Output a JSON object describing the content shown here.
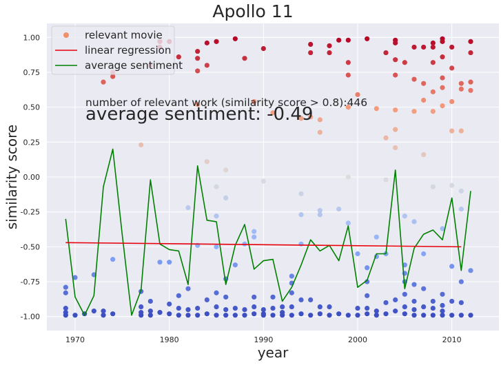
{
  "chart_data": {
    "type": "scatter",
    "title": "Apollo 11",
    "xlabel": "year",
    "ylabel": "similarity score",
    "xlim": [
      1967,
      2015
    ],
    "ylim": [
      -1.1,
      1.1
    ],
    "xticks": [
      "1970",
      "1980",
      "1990",
      "2000",
      "2010"
    ],
    "yticks": [
      "-1.00",
      "-0.75",
      "-0.50",
      "-0.25",
      "0.00",
      "0.25",
      "0.50",
      "0.75",
      "1.00"
    ],
    "grid": true,
    "legend_position": "top-left",
    "legend": [
      "relevant movie",
      "linear regression",
      "average sentiment"
    ],
    "annotations": {
      "count_text": "number of relevant work (similarity score > 0.8):446",
      "sentiment_text": "average sentiment: -0.49"
    },
    "colors": {
      "background": "#eaeaf2",
      "regression": "#e8000b",
      "sentiment": "#008000",
      "legend_marker": "#f0906a"
    },
    "regression": {
      "x": [
        1969,
        2011
      ],
      "y": [
        -0.47,
        -0.5
      ]
    },
    "average_sentiment": {
      "x": [
        1969,
        1970,
        1971,
        1972,
        1973,
        1974,
        1975,
        1976,
        1977,
        1978,
        1979,
        1980,
        1981,
        1982,
        1983,
        1984,
        1985,
        1986,
        1987,
        1988,
        1989,
        1990,
        1991,
        1992,
        1993,
        1994,
        1995,
        1996,
        1997,
        1998,
        1999,
        2000,
        2001,
        2002,
        2003,
        2004,
        2005,
        2006,
        2007,
        2008,
        2009,
        2010,
        2011,
        2012
      ],
      "y": [
        -0.3,
        -0.86,
        -0.99,
        -0.85,
        -0.07,
        0.2,
        -0.41,
        -0.99,
        -0.81,
        -0.02,
        -0.48,
        -0.52,
        -0.53,
        -0.77,
        0.08,
        -0.31,
        -0.32,
        -0.77,
        -0.49,
        -0.34,
        -0.66,
        -0.6,
        -0.59,
        -0.89,
        -0.79,
        -0.63,
        -0.45,
        -0.53,
        -0.49,
        -0.6,
        -0.35,
        -0.79,
        -0.74,
        -0.55,
        -0.55,
        0.05,
        -0.8,
        -0.51,
        -0.41,
        -0.38,
        -0.45,
        -0.15,
        -0.67,
        -0.1
      ]
    },
    "points": {
      "x": [
        1969,
        1969,
        1969,
        1969,
        1969,
        1970,
        1970,
        1971,
        1972,
        1972,
        1973,
        1973,
        1973,
        1974,
        1974,
        1974,
        1974,
        1977,
        1977,
        1977,
        1977,
        1977,
        1978,
        1978,
        1978,
        1978,
        1979,
        1979,
        1979,
        1979,
        1980,
        1980,
        1980,
        1980,
        1981,
        1981,
        1981,
        1981,
        1982,
        1982,
        1982,
        1982,
        1983,
        1983,
        1983,
        1983,
        1983,
        1983,
        1983,
        1984,
        1984,
        1984,
        1984,
        1984,
        1985,
        1985,
        1985,
        1985,
        1985,
        1985,
        1985,
        1986,
        1986,
        1986,
        1986,
        1986,
        1986,
        1987,
        1987,
        1987,
        1987,
        1988,
        1988,
        1988,
        1988,
        1989,
        1989,
        1989,
        1989,
        1989,
        1989,
        1990,
        1990,
        1990,
        1990,
        1990,
        1991,
        1991,
        1991,
        1991,
        1992,
        1992,
        1992,
        1993,
        1993,
        1993,
        1993,
        1993,
        1994,
        1994,
        1994,
        1994,
        1994,
        1994,
        1995,
        1995,
        1995,
        1995,
        1995,
        1996,
        1996,
        1996,
        1996,
        1996,
        1996,
        1997,
        1997,
        1997,
        1997,
        1998,
        1998,
        1998,
        1999,
        1999,
        1999,
        1999,
        1999,
        1999,
        1999,
        2000,
        2000,
        2000,
        2000,
        2001,
        2001,
        2001,
        2001,
        2001,
        2001,
        2002,
        2002,
        2002,
        2002,
        2002,
        2003,
        2003,
        2003,
        2003,
        2003,
        2003,
        2004,
        2004,
        2004,
        2004,
        2004,
        2004,
        2004,
        2004,
        2004,
        2005,
        2005,
        2005,
        2005,
        2005,
        2005,
        2005,
        2005,
        2006,
        2006,
        2006,
        2006,
        2006,
        2006,
        2006,
        2006,
        2007,
        2007,
        2007,
        2007,
        2007,
        2007,
        2007,
        2007,
        2008,
        2008,
        2008,
        2008,
        2008,
        2008,
        2008,
        2008,
        2008,
        2009,
        2009,
        2009,
        2009,
        2009,
        2009,
        2009,
        2009,
        2009,
        2009,
        2009,
        2010,
        2010,
        2010,
        2010,
        2010,
        2010,
        2010,
        2010,
        2011,
        2011,
        2011,
        2011,
        2011,
        2011,
        2011,
        2011,
        2012,
        2012,
        2012,
        2012,
        2012,
        2012
      ],
      "y": [
        -0.79,
        -0.83,
        -0.94,
        -0.97,
        -0.99,
        -0.72,
        -0.99,
        -0.98,
        -0.7,
        -0.96,
        0.68,
        -0.96,
        -0.99,
        0.72,
        0.75,
        -0.59,
        -0.98,
        0.23,
        -0.82,
        -0.93,
        -0.97,
        -0.99,
        0.8,
        -0.89,
        -0.96,
        -0.99,
        0.97,
        0.93,
        -0.61,
        -0.97,
        0.97,
        -0.61,
        -0.91,
        -0.98,
        0.86,
        -0.85,
        -0.94,
        -0.99,
        -0.22,
        -0.8,
        -0.95,
        -0.99,
        0.9,
        0.85,
        0.76,
        0.52,
        -0.49,
        -0.94,
        -0.99,
        0.96,
        0.8,
        0.11,
        -0.88,
        -0.98,
        0.97,
        -0.07,
        -0.28,
        -0.5,
        -0.83,
        -0.93,
        -0.99,
        0.05,
        -0.15,
        -0.73,
        -0.86,
        -0.95,
        -0.99,
        0.99,
        -0.63,
        -0.94,
        -0.99,
        0.85,
        -0.48,
        -0.95,
        -0.99,
        0.54,
        -0.39,
        -0.43,
        -0.86,
        -0.93,
        -0.98,
        0.92,
        -0.03,
        -0.95,
        -0.98,
        -0.99,
        0.46,
        -0.86,
        -0.94,
        -0.99,
        -0.93,
        -0.97,
        -0.99,
        -0.71,
        -0.76,
        -0.83,
        -0.93,
        -0.99,
        0.42,
        -0.12,
        -0.27,
        -0.48,
        -0.88,
        -0.98,
        0.95,
        0.89,
        0.43,
        -0.88,
        -0.99,
        0.41,
        0.32,
        -0.24,
        -0.27,
        -0.93,
        -0.98,
        0.94,
        0.89,
        -0.93,
        -0.99,
        0.98,
        -0.23,
        -0.98,
        0.98,
        0.82,
        0.73,
        0.5,
        0.0,
        -0.33,
        -0.99,
        0.59,
        -0.55,
        -0.94,
        -0.99,
        0.99,
        -0.65,
        -0.75,
        -0.85,
        -0.94,
        -0.98,
        0.49,
        -0.43,
        -0.57,
        -0.96,
        -0.99,
        0.89,
        0.28,
        -0.02,
        -0.55,
        -0.9,
        -0.98,
        0.98,
        0.96,
        0.84,
        0.73,
        0.48,
        0.34,
        0.21,
        -0.88,
        -0.96,
        0.82,
        -0.28,
        -0.63,
        -0.69,
        -0.75,
        -0.84,
        -0.93,
        -0.98,
        0.93,
        0.7,
        0.47,
        -0.32,
        -0.77,
        -0.89,
        -0.95,
        -0.99,
        0.93,
        0.67,
        0.55,
        0.16,
        -0.55,
        -0.8,
        -0.93,
        -0.99,
        0.96,
        0.93,
        0.82,
        0.61,
        0.47,
        -0.07,
        -0.89,
        -0.94,
        -0.99,
        0.99,
        0.97,
        0.86,
        0.71,
        0.64,
        0.51,
        -0.37,
        -0.84,
        -0.92,
        -0.96,
        -0.99,
        0.93,
        0.78,
        0.54,
        0.33,
        -0.06,
        -0.64,
        -0.89,
        -0.99,
        0.67,
        0.63,
        0.33,
        -0.1,
        -0.23,
        -0.75,
        -0.9,
        -0.99,
        0.97,
        0.89,
        0.68,
        0.62,
        -0.67,
        -0.99
      ]
    }
  }
}
